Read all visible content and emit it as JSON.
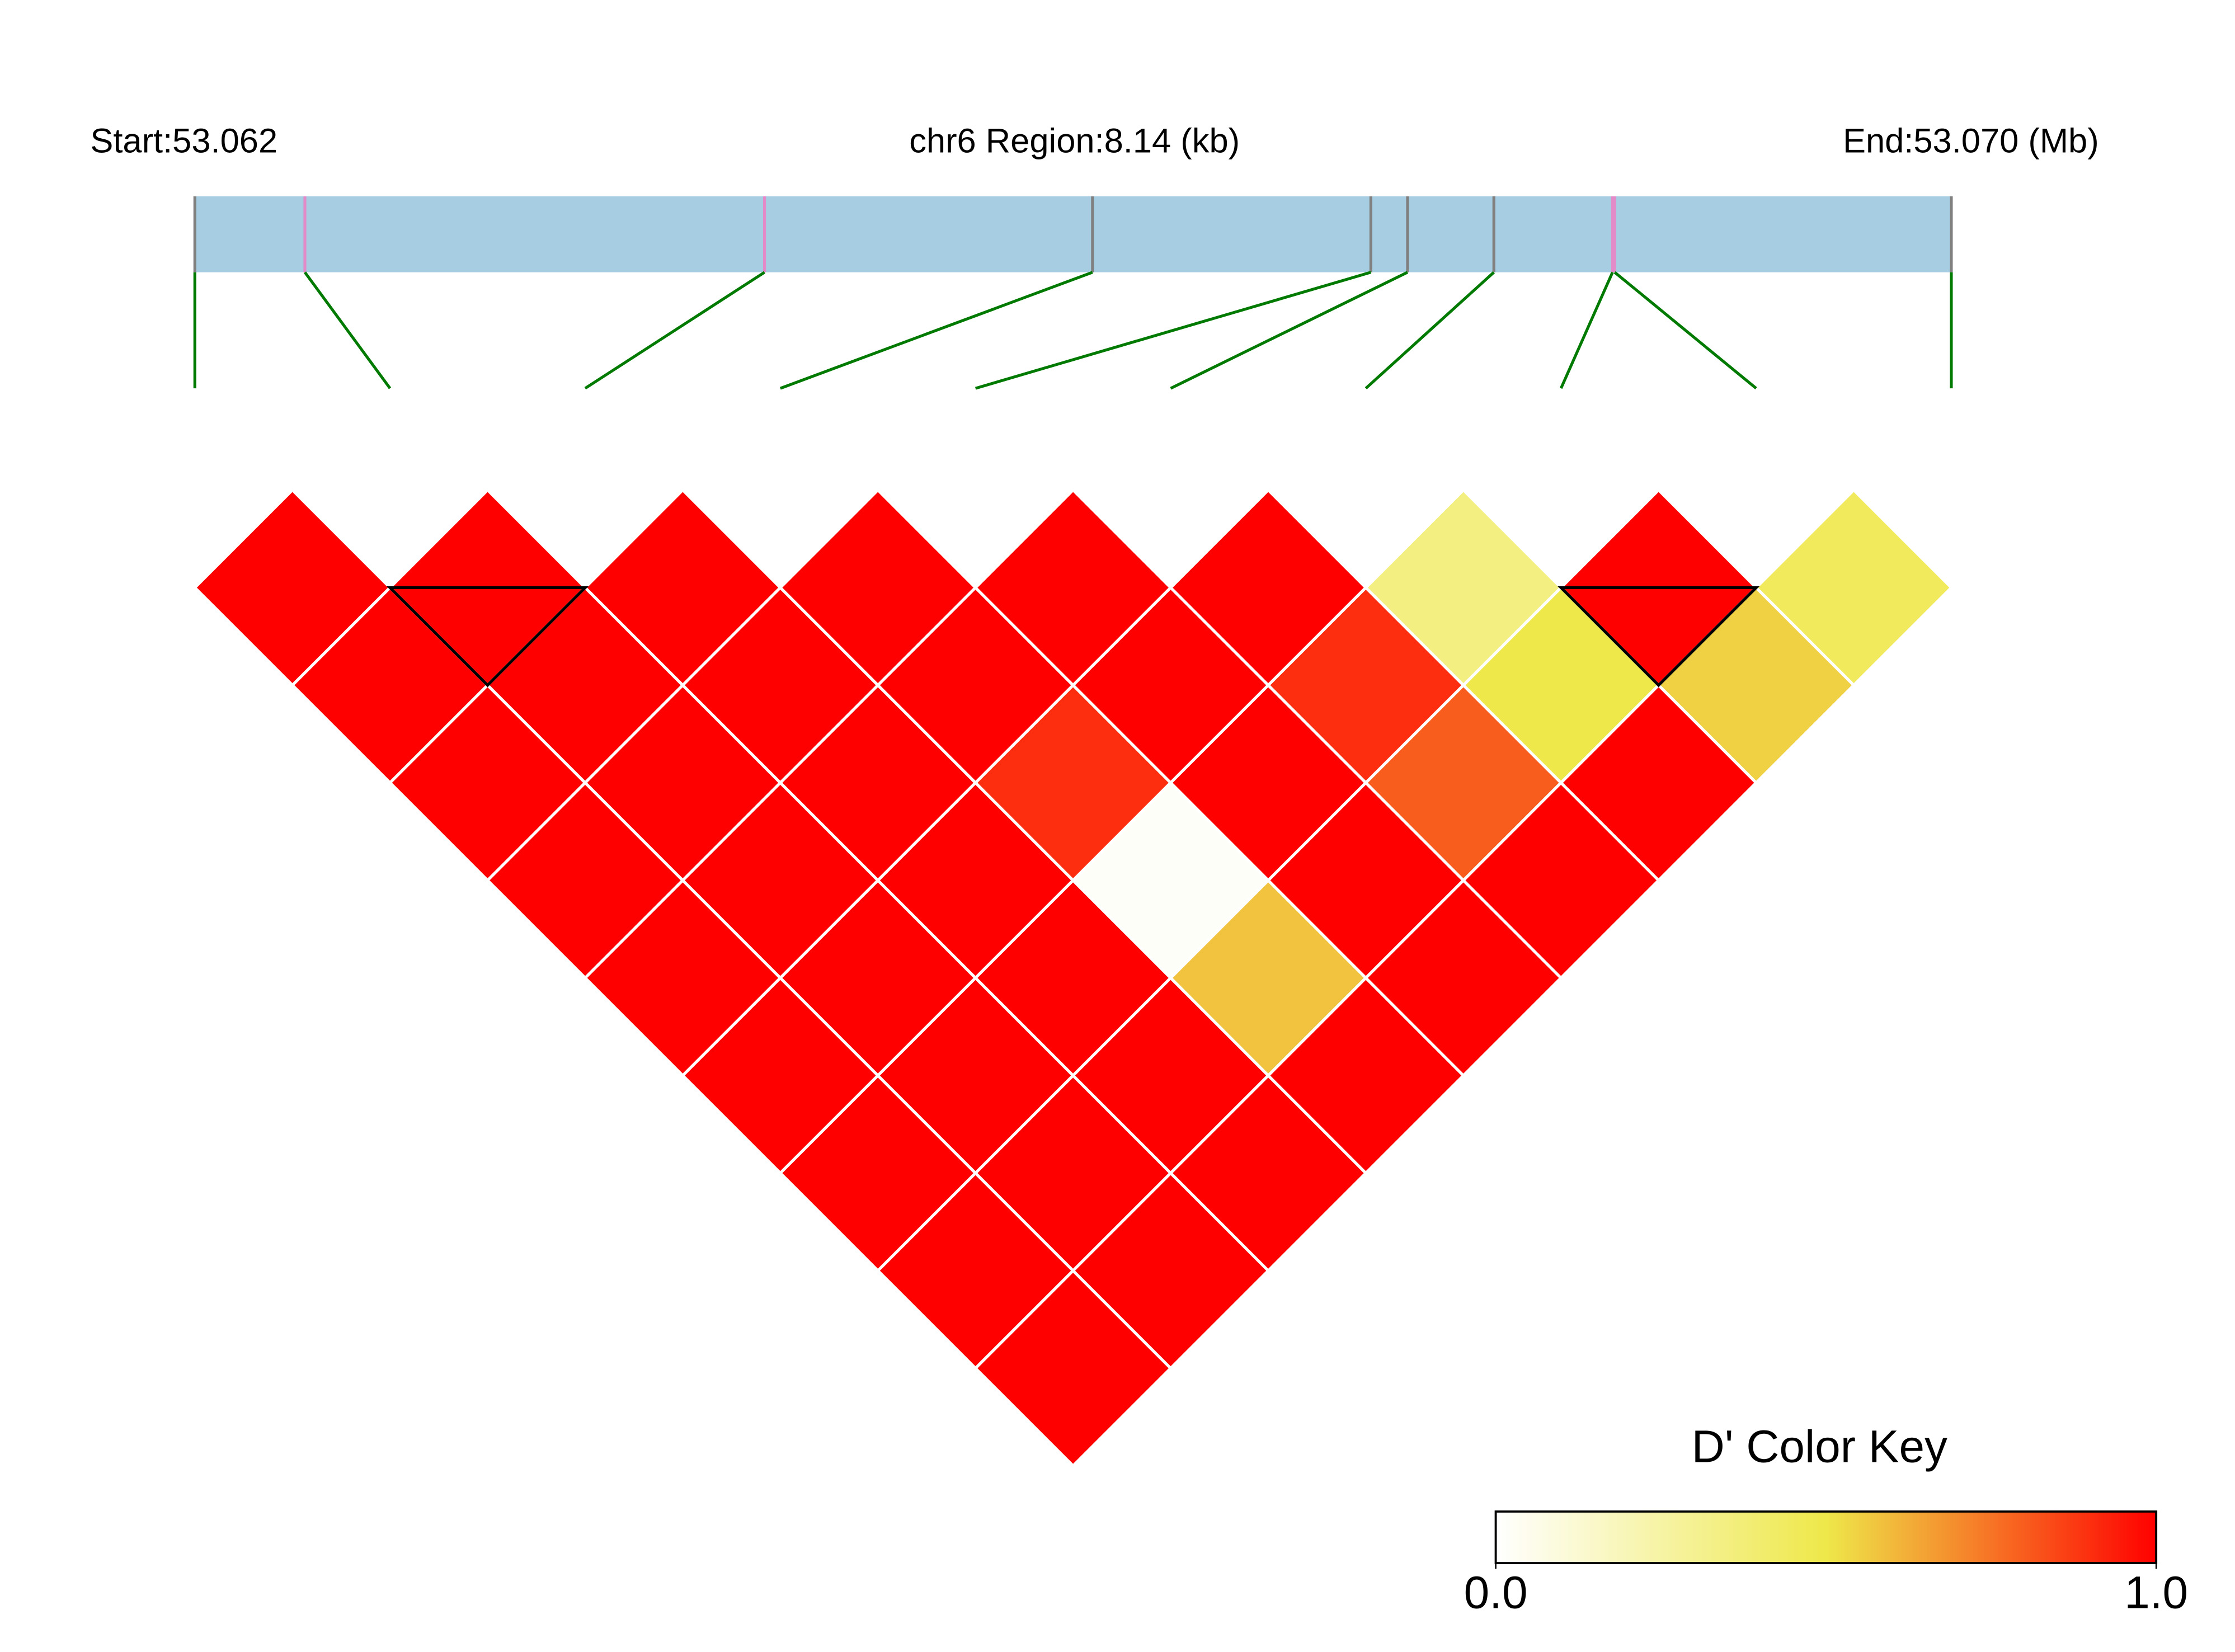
{
  "chart_data": {
    "type": "ld_heatmap",
    "start_label": "Start:53.062",
    "region_label": "chr6 Region:8.14 (kb)",
    "end_label": "End:53.070 (Mb)",
    "xlim": [
      53.062,
      53.07014
    ],
    "positions": [
      53.062,
      53.06251,
      53.06464,
      53.06616,
      53.06745,
      53.06762,
      53.06802,
      53.06857,
      53.06858,
      53.07014
    ],
    "position_colors": [
      "#808080",
      "#e38ac8",
      "#e38ac8",
      "#808080",
      "#808080",
      "#808080",
      "#808080",
      "#e38ac8",
      "#e38ac8",
      "#808080"
    ],
    "values": [
      [
        1,
        1,
        1,
        1,
        1,
        1,
        1,
        1,
        1
      ],
      [
        1,
        1,
        1,
        1,
        1,
        1,
        1,
        1
      ],
      [
        1,
        1,
        1,
        1,
        1,
        1,
        1
      ],
      [
        1,
        1,
        0.9,
        0.02,
        0.58,
        1
      ],
      [
        1,
        1,
        1,
        1,
        1
      ],
      [
        1,
        0.9,
        0.8,
        1
      ],
      [
        0.35,
        0.5,
        1
      ],
      [
        1,
        0.55
      ],
      [
        0.45
      ]
    ],
    "blocks": [
      [
        1,
        2
      ],
      [
        7,
        8
      ]
    ],
    "colorscale": [
      "#ffffff",
      "#eee84a",
      "#ff0000"
    ],
    "colorbar_title": "D' Color Key",
    "colorbar_lim": [
      0,
      1
    ],
    "colorbar_ticks": [
      {
        "value": 0,
        "label": "0.0"
      },
      {
        "value": 1,
        "label": "1.0"
      }
    ]
  }
}
